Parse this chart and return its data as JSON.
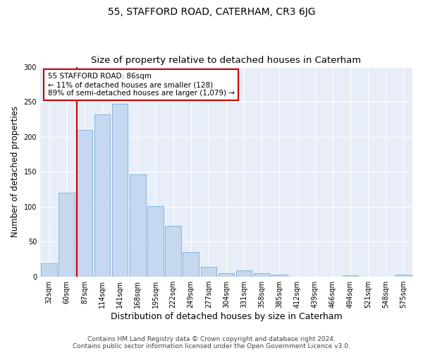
{
  "title": "55, STAFFORD ROAD, CATERHAM, CR3 6JG",
  "subtitle": "Size of property relative to detached houses in Caterham",
  "xlabel": "Distribution of detached houses by size in Caterham",
  "ylabel": "Number of detached properties",
  "bar_labels": [
    "32sqm",
    "60sqm",
    "87sqm",
    "114sqm",
    "141sqm",
    "168sqm",
    "195sqm",
    "222sqm",
    "249sqm",
    "277sqm",
    "304sqm",
    "331sqm",
    "358sqm",
    "385sqm",
    "412sqm",
    "439sqm",
    "466sqm",
    "494sqm",
    "521sqm",
    "548sqm",
    "575sqm"
  ],
  "bar_values": [
    19,
    120,
    210,
    232,
    247,
    146,
    101,
    73,
    35,
    14,
    5,
    9,
    5,
    3,
    0,
    0,
    0,
    2,
    0,
    0,
    3
  ],
  "bar_color": "#c5d8f0",
  "bar_edge_color": "#7aadd4",
  "annotation_text_line1": "55 STAFFORD ROAD: 86sqm",
  "annotation_text_line2": "← 11% of detached houses are smaller (128)",
  "annotation_text_line3": "89% of semi-detached houses are larger (1,079) →",
  "annotation_box_facecolor": "#ffffff",
  "annotation_box_edgecolor": "#cc0000",
  "vline_color": "#cc0000",
  "ylim": [
    0,
    300
  ],
  "yticks": [
    0,
    50,
    100,
    150,
    200,
    250,
    300
  ],
  "axes_facecolor": "#e8eef8",
  "figure_facecolor": "#ffffff",
  "grid_color": "#ffffff",
  "footer_line1": "Contains HM Land Registry data © Crown copyright and database right 2024.",
  "footer_line2": "Contains public sector information licensed under the Open Government Licence v3.0.",
  "title_fontsize": 10,
  "subtitle_fontsize": 9.5,
  "xlabel_fontsize": 9,
  "ylabel_fontsize": 8.5,
  "tick_fontsize": 7,
  "annotation_fontsize": 7.5,
  "footer_fontsize": 6.5
}
